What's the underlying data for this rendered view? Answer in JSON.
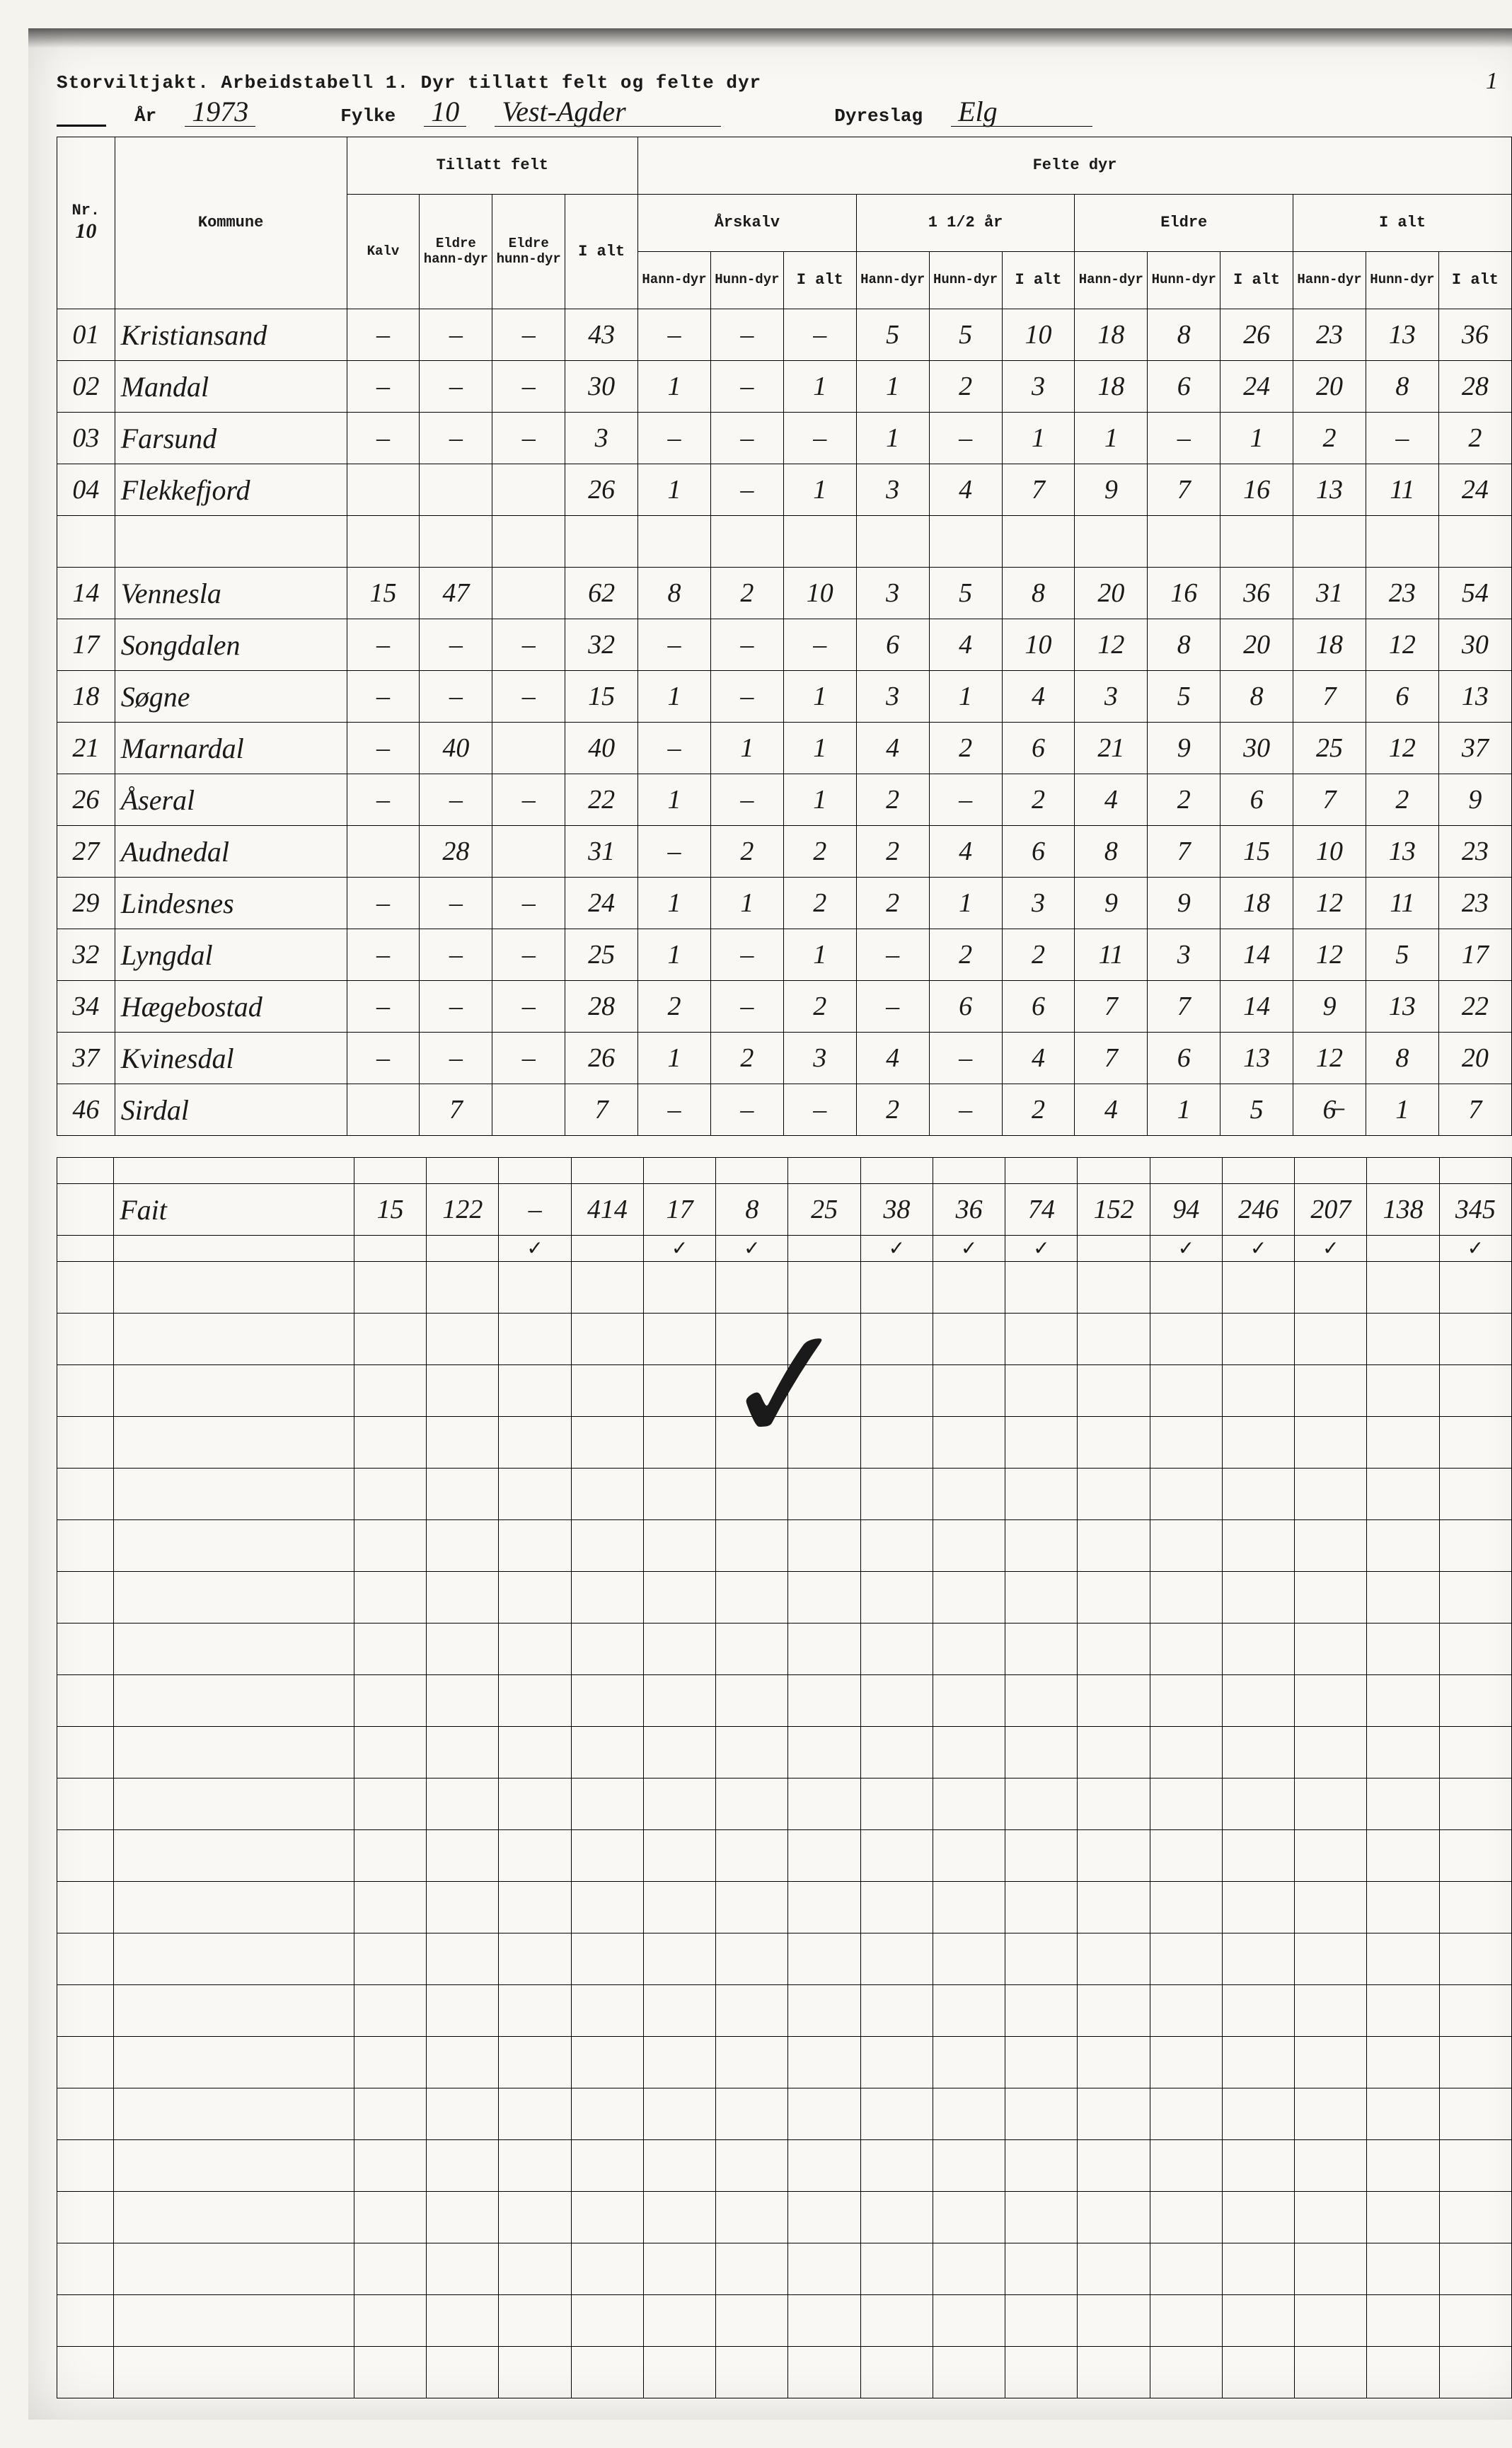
{
  "page_number": "1",
  "title": "Storviltjakt.  Arbeidstabell 1.  Dyr tillatt felt og felte dyr",
  "meta": {
    "ar_label": "År",
    "ar_value": "1973",
    "fylke_label": "Fylke",
    "fylke_num": "10",
    "fylke_name": "Vest-Agder",
    "dyreslag_label": "Dyreslag",
    "dyreslag_value": "Elg"
  },
  "headers": {
    "nr": "Nr.",
    "nr_sub": "10",
    "kommune": "Kommune",
    "tillatt_felt": "Tillatt felt",
    "felte_dyr": "Felte dyr",
    "kalv": "Kalv",
    "eldre_hann": "Eldre hann-dyr",
    "eldre_hunn": "Eldre hunn-dyr",
    "ialt": "I alt",
    "arskalv": "Årskalv",
    "halvannet": "1 1/2 år",
    "eldre": "Eldre",
    "ialt2": "I alt",
    "hann": "Hann-dyr",
    "hunn": "Hunn-dyr"
  },
  "rows": [
    {
      "nr": "01",
      "name": "Kristiansand",
      "c": [
        "–",
        "–",
        "–",
        "43",
        "–",
        "–",
        "–",
        "5",
        "5",
        "10",
        "18",
        "8",
        "26",
        "23",
        "13",
        "36"
      ]
    },
    {
      "nr": "02",
      "name": "Mandal",
      "c": [
        "–",
        "–",
        "–",
        "30",
        "1",
        "–",
        "1",
        "1",
        "2",
        "3",
        "18",
        "6",
        "24",
        "20",
        "8",
        "28"
      ]
    },
    {
      "nr": "03",
      "name": "Farsund",
      "c": [
        "–",
        "–",
        "–",
        "3",
        "–",
        "–",
        "–",
        "1",
        "–",
        "1",
        "1",
        "–",
        "1",
        "2",
        "–",
        "2"
      ]
    },
    {
      "nr": "04",
      "name": "Flekkefjord",
      "c": [
        "",
        "",
        "",
        "26",
        "1",
        "–",
        "1",
        "3",
        "4",
        "7",
        "9",
        "7",
        "16",
        "13",
        "11",
        "24"
      ]
    },
    {
      "nr": "",
      "name": "",
      "c": [
        "",
        "",
        "",
        "",
        "",
        "",
        "",
        "",
        "",
        "",
        "",
        "",
        "",
        "",
        "",
        ""
      ]
    },
    {
      "nr": "14",
      "name": "Vennesla",
      "c": [
        "15",
        "47",
        "",
        "62",
        "8",
        "2",
        "10",
        "3",
        "5",
        "8",
        "20",
        "16",
        "36",
        "31",
        "23",
        "54"
      ]
    },
    {
      "nr": "17",
      "name": "Songdalen",
      "c": [
        "–",
        "–",
        "–",
        "32",
        "–",
        "–",
        "–",
        "6",
        "4",
        "10",
        "12",
        "8",
        "20",
        "18",
        "12",
        "30"
      ]
    },
    {
      "nr": "18",
      "name": "Søgne",
      "c": [
        "–",
        "–",
        "–",
        "15",
        "1",
        "–",
        "1",
        "3",
        "1",
        "4",
        "3",
        "5",
        "8",
        "7",
        "6",
        "13"
      ]
    },
    {
      "nr": "21",
      "name": "Marnardal",
      "c": [
        "–",
        "40",
        "",
        "40",
        "–",
        "1",
        "1",
        "4",
        "2",
        "6",
        "21",
        "9",
        "30",
        "25",
        "12",
        "37"
      ]
    },
    {
      "nr": "26",
      "name": "Åseral",
      "c": [
        "–",
        "–",
        "–",
        "22",
        "1",
        "–",
        "1",
        "2",
        "–",
        "2",
        "4",
        "2",
        "6",
        "7",
        "2",
        "9"
      ]
    },
    {
      "nr": "27",
      "name": "Audnedal",
      "c": [
        "",
        "28",
        "",
        "31",
        "–",
        "2",
        "2",
        "2",
        "4",
        "6",
        "8",
        "7",
        "15",
        "10",
        "13",
        "23"
      ]
    },
    {
      "nr": "29",
      "name": "Lindesnes",
      "c": [
        "–",
        "–",
        "–",
        "24",
        "1",
        "1",
        "2",
        "2",
        "1",
        "3",
        "9",
        "9",
        "18",
        "12",
        "11",
        "23"
      ]
    },
    {
      "nr": "32",
      "name": "Lyngdal",
      "c": [
        "–",
        "–",
        "–",
        "25",
        "1",
        "–",
        "1",
        "–",
        "2",
        "2",
        "11",
        "3",
        "14",
        "12",
        "5",
        "17"
      ]
    },
    {
      "nr": "34",
      "name": "Hægebostad",
      "c": [
        "–",
        "–",
        "–",
        "28",
        "2",
        "–",
        "2",
        "–",
        "6",
        "6",
        "7",
        "7",
        "14",
        "9",
        "13",
        "22"
      ]
    },
    {
      "nr": "37",
      "name": "Kvinesdal",
      "c": [
        "–",
        "–",
        "–",
        "26",
        "1",
        "2",
        "3",
        "4",
        "–",
        "4",
        "7",
        "6",
        "13",
        "12",
        "8",
        "20"
      ]
    },
    {
      "nr": "46",
      "name": "Sirdal",
      "c": [
        "",
        "7",
        "",
        "7",
        "–",
        "–",
        "–",
        "2",
        "–",
        "2",
        "4",
        "1",
        "5",
        "6̶",
        "1",
        "7"
      ]
    }
  ],
  "total": {
    "name": "Fait",
    "c": [
      "15",
      "122",
      "–",
      "414",
      "17",
      "8",
      "25",
      "38",
      "36",
      "74",
      "152",
      "94",
      "246",
      "207",
      "138",
      "345"
    ]
  },
  "ticks": [
    "",
    "",
    "",
    "",
    "✓",
    "",
    "✓",
    "✓",
    "",
    "✓",
    "✓",
    "✓",
    "",
    "✓",
    "✓",
    "✓",
    "",
    "✓",
    "✓",
    ""
  ],
  "empty_rows": 22,
  "colors": {
    "paper": "#faf8f4",
    "ink": "#1a1a1a",
    "border": "#000000"
  }
}
